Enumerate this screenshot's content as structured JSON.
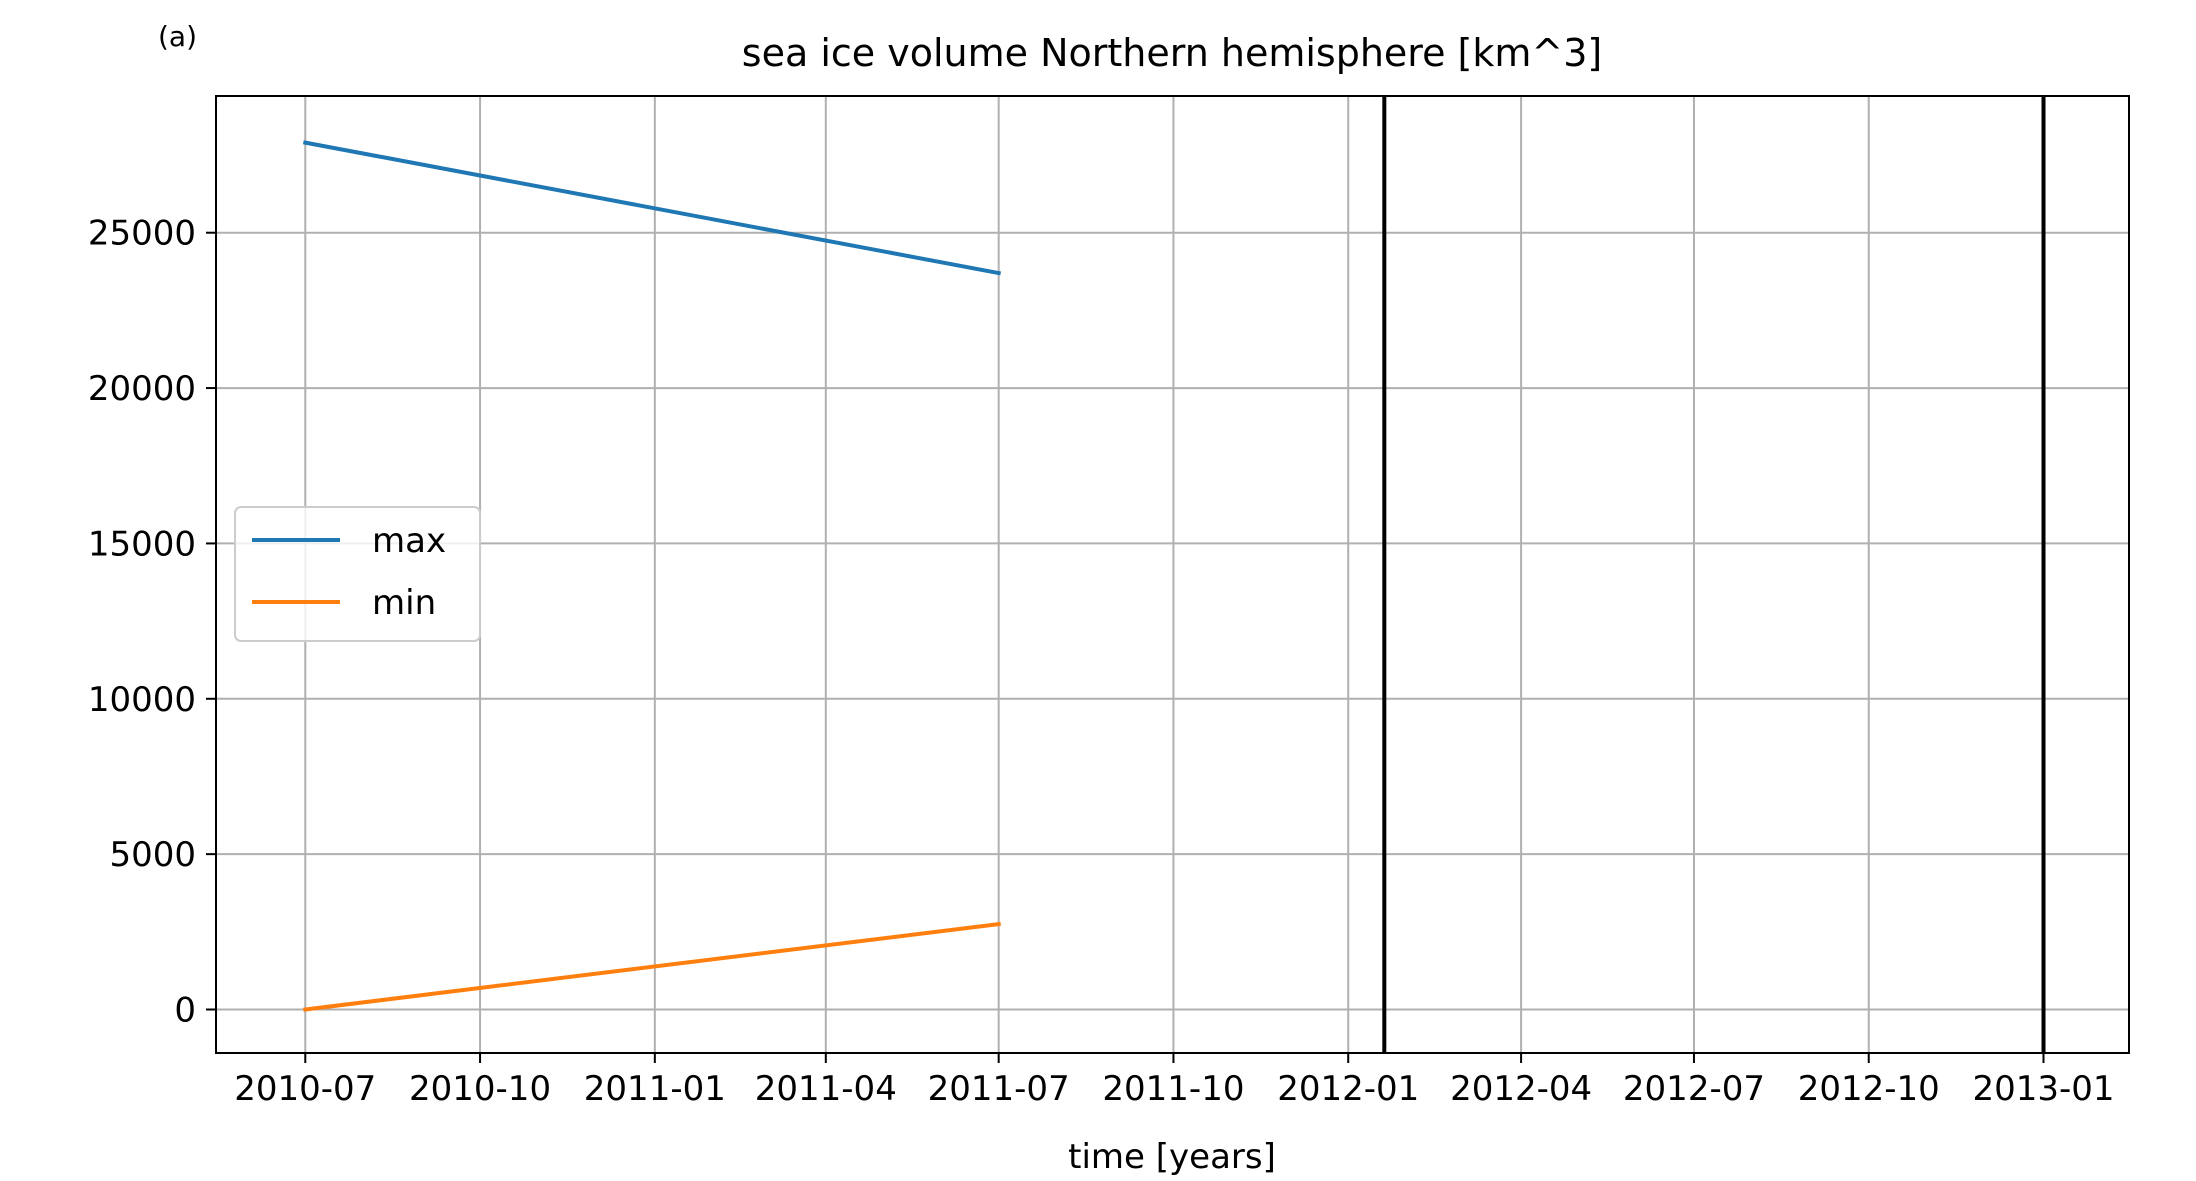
{
  "panel_label": "(a)",
  "chart_data": {
    "type": "line",
    "title": "sea ice volume Northern hemisphere [km^3]",
    "xlabel": "time [years]",
    "ylabel": "",
    "x_ticks": [
      "2010-07",
      "2010-10",
      "2011-01",
      "2011-04",
      "2011-07",
      "2011-10",
      "2012-01",
      "2012-04",
      "2012-07",
      "2012-10",
      "2013-01"
    ],
    "xlim": [
      "2010-05-15",
      "2013-02-15"
    ],
    "y_ticks": [
      0,
      5000,
      10000,
      15000,
      20000,
      25000
    ],
    "ylim": [
      -1400,
      29400
    ],
    "grid": true,
    "legend_position": "center-left",
    "series": [
      {
        "name": "max",
        "color": "#1f77b4",
        "x": [
          "2010-07-01",
          "2011-07-01"
        ],
        "y": [
          27900,
          23700
        ]
      },
      {
        "name": "min",
        "color": "#ff7f0e",
        "x": [
          "2010-07-01",
          "2011-07-01"
        ],
        "y": [
          0,
          2750
        ]
      }
    ],
    "vertical_lines": [
      {
        "x": "2012-01-20",
        "color": "#000000"
      },
      {
        "x": "2013-01-01",
        "color": "#000000"
      }
    ]
  }
}
